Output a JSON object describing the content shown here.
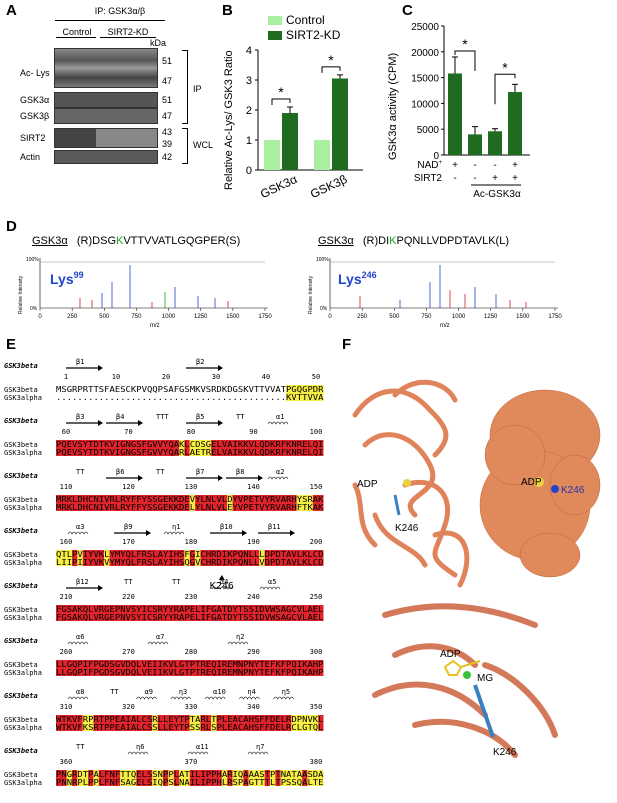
{
  "panels": {
    "A": {
      "letter": "A",
      "ip_header": "IP: GSK3α/β",
      "lanes": [
        "Control",
        "SIRT2-KD"
      ],
      "kda_label": "kDa",
      "blot_labels": [
        "Ac- Lys",
        "GSK3α",
        "GSK3β",
        "SIRT2",
        "Actin"
      ],
      "markers": [
        "51",
        "47",
        "51",
        "47",
        "43",
        "39",
        "42"
      ],
      "group_labels": [
        "IP",
        "WCL"
      ]
    },
    "B": {
      "letter": "B",
      "legend": [
        "Control",
        "SIRT2-KD"
      ],
      "colors": {
        "control": "#a8f0a0",
        "sirt2kd": "#1f6b1f"
      },
      "chart_data": {
        "type": "bar",
        "categories": [
          "GSK3α",
          "GSK3β"
        ],
        "series": [
          {
            "name": "Control",
            "values": [
              1.0,
              1.0
            ]
          },
          {
            "name": "SIRT2-KD",
            "values": [
              1.9,
              3.05
            ]
          }
        ],
        "errors": [
          [
            0,
            0
          ],
          [
            0.2,
            0.12
          ]
        ],
        "ylabel": "Relative Ac-Lys/ GSK3 Ratio",
        "ylim": [
          0,
          4
        ],
        "yticks": [
          "0",
          "1",
          "2",
          "3",
          "4"
        ],
        "annotations": [
          "*",
          "*"
        ]
      }
    },
    "C": {
      "letter": "C",
      "chart_data": {
        "type": "bar",
        "categories": [
          "1",
          "2",
          "3",
          "4"
        ],
        "values": [
          15800,
          4000,
          4600,
          12200
        ],
        "errors": [
          3200,
          1500,
          500,
          1500
        ],
        "ylabel": "GSK3α activity (CPM)",
        "ylim": [
          0,
          25000
        ],
        "yticks": [
          "0",
          "5000",
          "10000",
          "15000",
          "20000",
          "25000"
        ],
        "annotations": [
          "*",
          "*"
        ]
      },
      "conditions": {
        "nad_label": "NAD",
        "nad_values": [
          "+",
          "-",
          "-",
          "+"
        ],
        "sirt2_label": "SIRT2",
        "sirt2_values": [
          "-",
          "-",
          "+",
          "+"
        ],
        "substrate_label": "Ac-GSK3α"
      }
    },
    "D": {
      "letter": "D",
      "left": {
        "protein": "GSK3α",
        "seq_pre": "(R)DSG",
        "seq_k": "K",
        "seq_post": "VTTVVATLGQGPER(S)",
        "site": "Lys",
        "site_num": "99"
      },
      "right": {
        "protein": "GSK3α",
        "seq_pre": "(R)DI",
        "seq_k": "K",
        "seq_post": "PQNLLVDPDTAVLK(L)",
        "site": "Lys",
        "site_num": "246"
      },
      "ylabel": "Relative Intensity",
      "xlabel": "m/z",
      "xticks": [
        "0",
        "250",
        "500",
        "750",
        "1000",
        "1250",
        "1500",
        "1750"
      ],
      "y_top": "100%",
      "y_bottom": "0%"
    },
    "E": {
      "letter": "E",
      "header_name": "GSK3beta",
      "row_names": [
        "GSK3beta",
        "GSK3alpha"
      ],
      "blocks": [
        {
          "ruler": [
            "1",
            "10",
            "20",
            "30",
            "40",
            "50"
          ],
          "ss": [
            "β1",
            "β2"
          ],
          "beta": "MSGRPRTTSFAESCKPVQQPSAFGSMKVSRDKDGSKVTTVVATPGQGPDR",
          "alpha": "...........................................KVTTVVATLGQGPER"
        },
        {
          "ruler": [
            "60",
            "70",
            "80",
            "90",
            "100"
          ],
          "ss": [
            "β3",
            "β4",
            "TTT",
            "β5",
            "TT",
            "α1"
          ],
          "beta": "PQEVSYTDTKVIGNGSFGVVYQAKLCDSGELVAIKKVLQDKRFKNRELQI",
          "alpha": "PQEVSYTDTKVIGNGSFGVVYQARLAETRELVAIKKVLQDKRFKNRELQI"
        },
        {
          "ruler": [
            "110",
            "120",
            "130",
            "140",
            "150"
          ],
          "ss": [
            "TT",
            "β6",
            "TT",
            "β7",
            "β8",
            "α2"
          ],
          "beta": "MRKLDHCNIVRLRYFFYSSGEKKDEVYLNLVLDYVPETVYRVARHYSRAK",
          "alpha": "MRKLDHCNIVRLRYFFYSSGEKKDELYLNLVLEYVPETVYRVARHFTKAK"
        },
        {
          "ruler": [
            "160",
            "170",
            "180",
            "190",
            "200"
          ],
          "ss": [
            "α3",
            "β9",
            "η1",
            "β10",
            "β11"
          ],
          "beta": "QTLPVIYVKLYMYQLFRSLAYIHSFGICHRDIKPQNLLLDPDTAVLKLCD",
          "alpha": "LIIPIIYVKVYMYQLFRSLAYIHSQGVCHRDIKPQNLLVDPDTAVLKLCD",
          "marker": "K246"
        },
        {
          "ruler": [
            "210",
            "220",
            "230",
            "240",
            "250"
          ],
          "ss": [
            "β12",
            "TT",
            "TT",
            "α4",
            "α5"
          ],
          "beta": "FGSAKQLVRGEPNVSYICSRYYRAPELIFGATDYTSSIDVWSAGCVLAEL",
          "alpha": "FGSAKQLVRGEPNVSYICSRYYRAPELIFGATDYTSSIDVWSAGCVLAEL"
        },
        {
          "ruler": [
            "260",
            "270",
            "280",
            "290",
            "300"
          ],
          "ss": [
            "α6",
            "α7",
            "η2"
          ],
          "beta": "LLGQPIFPGDSGVDQLVEIIKVLGTPTREQIREMNPNYTEFKFPQIKAHP",
          "alpha": "LLGQPIFPGDSGVDQLVEIIKVLGTPTREQIREMNPNYTEFKFPQIKAHP"
        },
        {
          "ruler": [
            "310",
            "320",
            "330",
            "340",
            "350"
          ],
          "ss": [
            "α8",
            "TT",
            "α9",
            "η3",
            "α10",
            "η4",
            "η5"
          ],
          "beta": "WTKVFRPRTPPEAIALCSRLLEYTPTARLTPLEACAHSFFDELRDPNVKL",
          "alpha": "WTKVFKSRTPPEAIALCSSLLEYTPSSRLSPLEACAHSFFDELRCLGTQL"
        },
        {
          "ruler": [
            "360",
            "370",
            "380"
          ],
          "ss": [
            "TT",
            "η6",
            "α11",
            "η7"
          ],
          "beta": "PNGRDTPALFNFTTQELSSNPPLATILIPPHARIQAAASTPTNATAASDA",
          "alpha": "PNNRPLPPLFNFSAGELSIQPSLNAILIPPHLRSPAGTTTLTPSSQALTE"
        }
      ]
    },
    "F": {
      "letter": "F",
      "labels": [
        "ADP",
        "K246",
        "ADP",
        "K246",
        "ADP",
        "MG",
        "K246"
      ]
    }
  }
}
